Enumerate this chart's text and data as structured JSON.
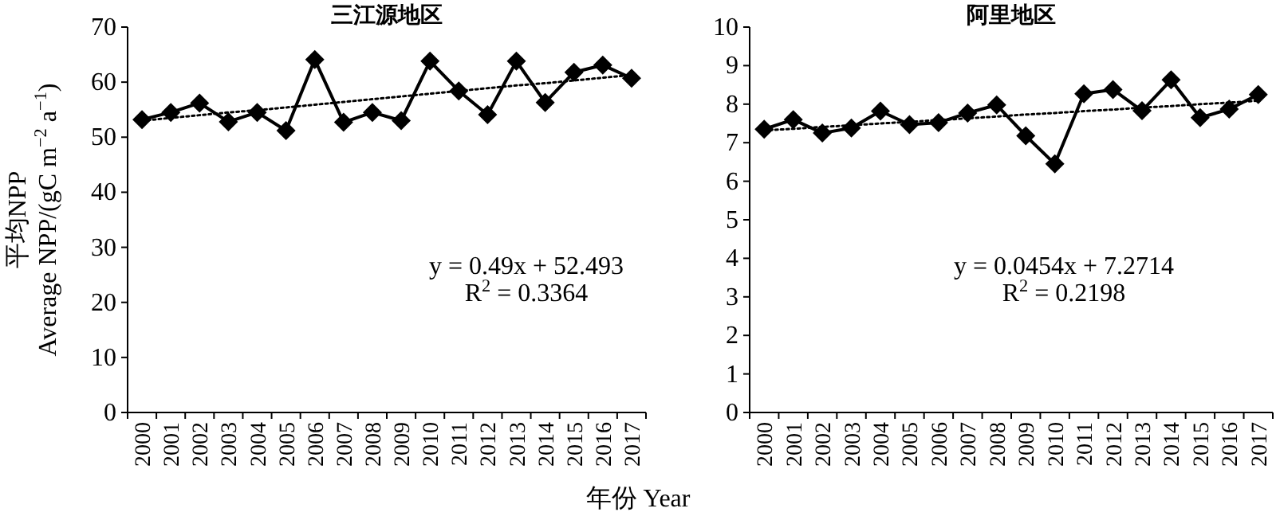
{
  "chart_data": [
    {
      "type": "line",
      "title": "三江源地区",
      "ylabel": "平均NPP\nAverage NPP/(gC m$^{−2}$ a$^{−1}$)",
      "xlabel": "年份 Year",
      "categories": [
        "2000",
        "2001",
        "2002",
        "2003",
        "2004",
        "2005",
        "2006",
        "2007",
        "2008",
        "2009",
        "2010",
        "2011",
        "2012",
        "2013",
        "2014",
        "2015",
        "2016",
        "2017"
      ],
      "ylim": [
        0,
        70
      ],
      "yticks": [
        0,
        10,
        20,
        30,
        40,
        50,
        60,
        70
      ],
      "series": [
        {
          "color": "#000000",
          "marker": "diamond",
          "line_style": "solid",
          "values": [
            53.2,
            54.5,
            56.2,
            52.8,
            54.5,
            51.2,
            64.1,
            52.7,
            54.5,
            53.0,
            63.8,
            58.4,
            54.1,
            63.8,
            56.3,
            61.8,
            63.1,
            60.7
          ]
        },
        {
          "color": "#000000",
          "marker": "none",
          "line_style": "dotted",
          "values": [
            53.0,
            53.5,
            54.0,
            54.5,
            54.9,
            55.4,
            55.9,
            56.4,
            56.9,
            57.4,
            57.9,
            58.4,
            58.9,
            59.4,
            59.8,
            60.3,
            60.8,
            61.3
          ]
        }
      ],
      "annotations": [
        "y = 0.49x + 52.493",
        "R$^{2}$ = 0.3364"
      ]
    },
    {
      "type": "line",
      "title": "阿里地区",
      "categories": [
        "2000",
        "2001",
        "2002",
        "2003",
        "2004",
        "2005",
        "2006",
        "2007",
        "2008",
        "2009",
        "2010",
        "2011",
        "2012",
        "2013",
        "2014",
        "2015",
        "2016",
        "2017"
      ],
      "ylim": [
        0,
        10
      ],
      "yticks": [
        0,
        1,
        2,
        3,
        4,
        5,
        6,
        7,
        8,
        9,
        10
      ],
      "series": [
        {
          "color": "#000000",
          "marker": "diamond",
          "line_style": "solid",
          "values": [
            7.35,
            7.6,
            7.25,
            7.38,
            7.82,
            7.47,
            7.52,
            7.77,
            7.98,
            7.18,
            6.45,
            8.27,
            8.38,
            7.83,
            8.63,
            7.65,
            7.87,
            8.25
          ]
        },
        {
          "color": "#000000",
          "marker": "none",
          "line_style": "dotted",
          "values": [
            7.32,
            7.36,
            7.41,
            7.45,
            7.5,
            7.54,
            7.59,
            7.63,
            7.68,
            7.73,
            7.77,
            7.82,
            7.86,
            7.91,
            7.95,
            8.0,
            8.04,
            8.09
          ]
        }
      ],
      "annotations": [
        "y = 0.0454x + 7.2714",
        "R$^{2}$ = 0.2198"
      ]
    }
  ]
}
